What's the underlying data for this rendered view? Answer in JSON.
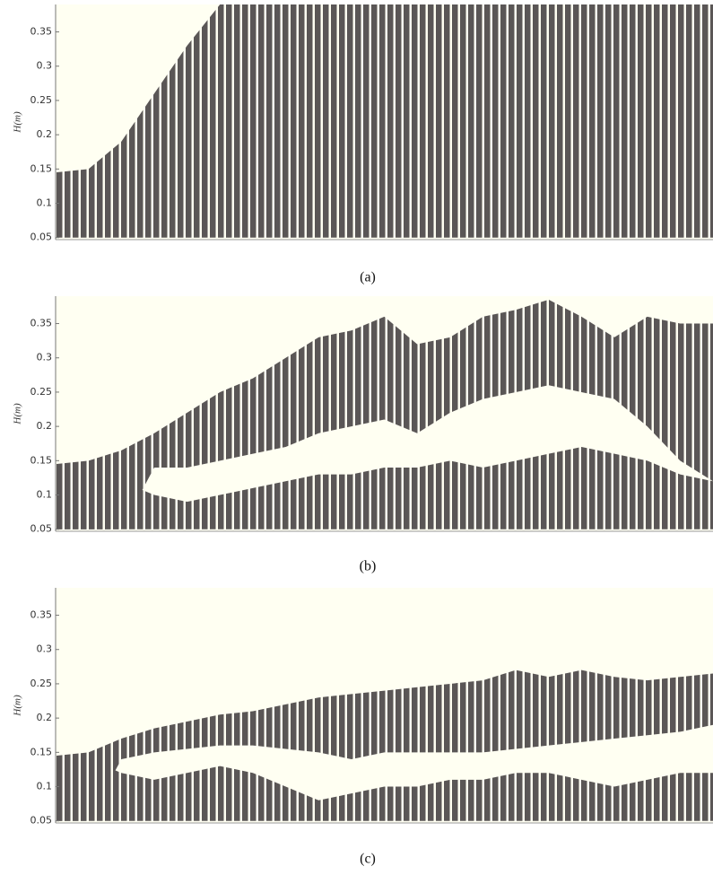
{
  "chart_data": [
    {
      "type": "band",
      "caption": "(a)",
      "y_label": "H(m)",
      "xlim": [
        0,
        20
      ],
      "ylim": [
        0.047,
        0.39
      ],
      "yticks": [
        0.05,
        0.1,
        0.15,
        0.2,
        0.25,
        0.3,
        0.35
      ],
      "color": "#5a5656",
      "x": [
        0,
        1,
        2,
        3,
        4,
        5,
        6,
        7,
        8,
        9,
        10,
        11,
        12,
        13,
        14,
        15,
        16,
        17,
        18,
        19,
        20
      ],
      "series": [
        {
          "upper": [
            0.145,
            0.15,
            0.19,
            0.26,
            0.33,
            0.39,
            0.39,
            0.39,
            0.39,
            0.39,
            0.39,
            0.39,
            0.39,
            0.39,
            0.39,
            0.39,
            0.39,
            0.39,
            0.39,
            0.39,
            0.39
          ],
          "lower": [
            0.05,
            0.05,
            0.05,
            0.05,
            0.05,
            0.05,
            0.05,
            0.05,
            0.05,
            0.05,
            0.05,
            0.05,
            0.05,
            0.05,
            0.05,
            0.05,
            0.05,
            0.05,
            0.05,
            0.05,
            0.05
          ]
        }
      ]
    },
    {
      "type": "band",
      "caption": "(b)",
      "y_label": "H(m)",
      "xlim": [
        0,
        20
      ],
      "ylim": [
        0.047,
        0.39
      ],
      "yticks": [
        0.05,
        0.1,
        0.15,
        0.2,
        0.25,
        0.3,
        0.35
      ],
      "color": "#5a5656",
      "x": [
        0,
        1,
        2,
        3,
        4,
        5,
        6,
        7,
        8,
        9,
        10,
        11,
        12,
        13,
        14,
        15,
        16,
        17,
        18,
        19,
        20
      ],
      "series": [
        {
          "upper": [
            0.145,
            0.15,
            0.165,
            0.19,
            0.22,
            0.25,
            0.27,
            0.3,
            0.33,
            0.34,
            0.36,
            0.32,
            0.33,
            0.36,
            0.37,
            0.385,
            0.36,
            0.33,
            0.36,
            0.35,
            0.35
          ],
          "lower": [
            0.05,
            0.05,
            0.05,
            0.14,
            0.14,
            0.15,
            0.16,
            0.17,
            0.19,
            0.2,
            0.21,
            0.19,
            0.22,
            0.24,
            0.25,
            0.26,
            0.25,
            0.24,
            0.2,
            0.15,
            0.12
          ]
        },
        {
          "upper": [
            0.145,
            0.14,
            0.12,
            0.1,
            0.09,
            0.1,
            0.11,
            0.12,
            0.13,
            0.13,
            0.14,
            0.14,
            0.15,
            0.14,
            0.15,
            0.16,
            0.17,
            0.16,
            0.15,
            0.13,
            0.12
          ],
          "lower": [
            0.05,
            0.05,
            0.05,
            0.05,
            0.05,
            0.05,
            0.05,
            0.05,
            0.05,
            0.05,
            0.05,
            0.05,
            0.05,
            0.05,
            0.05,
            0.05,
            0.05,
            0.05,
            0.05,
            0.05,
            0.05
          ]
        }
      ]
    },
    {
      "type": "band",
      "caption": "(c)",
      "y_label": "H(m)",
      "xlim": [
        0,
        20
      ],
      "ylim": [
        0.047,
        0.39
      ],
      "yticks": [
        0.05,
        0.1,
        0.15,
        0.2,
        0.25,
        0.3,
        0.35
      ],
      "color": "#5a5656",
      "x": [
        0,
        1,
        2,
        3,
        4,
        5,
        6,
        7,
        8,
        9,
        10,
        11,
        12,
        13,
        14,
        15,
        16,
        17,
        18,
        19,
        20
      ],
      "series": [
        {
          "upper": [
            0.145,
            0.15,
            0.17,
            0.185,
            0.195,
            0.205,
            0.21,
            0.22,
            0.23,
            0.235,
            0.24,
            0.245,
            0.25,
            0.255,
            0.27,
            0.26,
            0.27,
            0.26,
            0.255,
            0.26,
            0.265
          ],
          "lower": [
            0.05,
            0.05,
            0.14,
            0.15,
            0.155,
            0.16,
            0.16,
            0.155,
            0.15,
            0.14,
            0.15,
            0.15,
            0.15,
            0.15,
            0.155,
            0.16,
            0.165,
            0.17,
            0.175,
            0.18,
            0.19
          ]
        },
        {
          "upper": [
            0.145,
            0.14,
            0.12,
            0.11,
            0.12,
            0.13,
            0.12,
            0.1,
            0.08,
            0.09,
            0.1,
            0.1,
            0.11,
            0.11,
            0.12,
            0.12,
            0.11,
            0.1,
            0.11,
            0.12,
            0.12
          ],
          "lower": [
            0.05,
            0.05,
            0.05,
            0.05,
            0.05,
            0.05,
            0.05,
            0.05,
            0.05,
            0.05,
            0.05,
            0.05,
            0.05,
            0.05,
            0.05,
            0.05,
            0.05,
            0.05,
            0.05,
            0.05,
            0.05
          ]
        }
      ]
    }
  ]
}
